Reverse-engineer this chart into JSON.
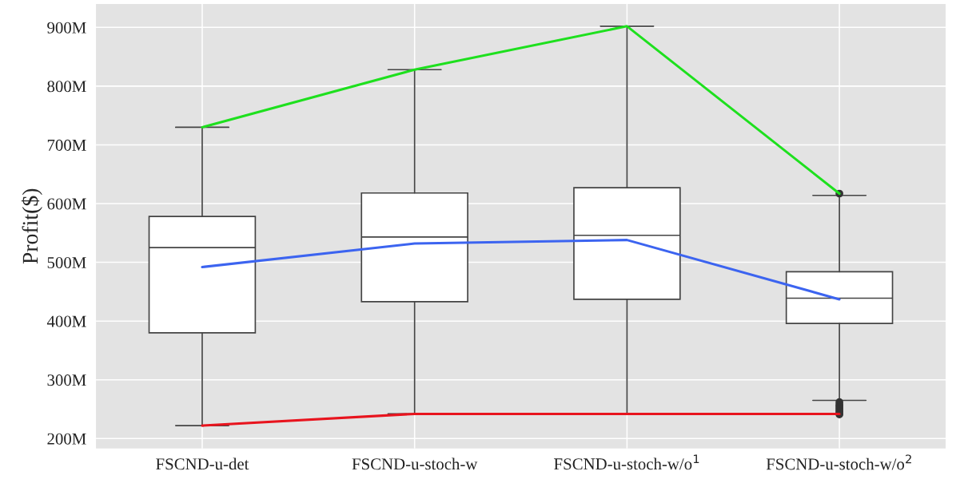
{
  "chart_data": {
    "type": "box",
    "ylabel": "Profit($)",
    "categories": [
      "FSCND-u-det",
      "FSCND-u-stoch-w",
      "FSCND-u-stoch-w/o$^{1}$",
      "FSCND-u-stoch-w/o$^{2}$"
    ],
    "boxes": [
      {
        "low": 222,
        "q1": 380,
        "median": 525,
        "q3": 578,
        "high": 730
      },
      {
        "low": 242,
        "q1": 433,
        "median": 543,
        "q3": 618,
        "high": 828
      },
      {
        "low": 242,
        "q1": 437,
        "median": 546,
        "q3": 627,
        "high": 902
      },
      {
        "low": 265,
        "q1": 396,
        "median": 439,
        "q3": 484,
        "high": 614,
        "outliers": [
          617,
          262,
          258,
          255,
          252,
          249,
          246,
          243,
          241
        ]
      }
    ],
    "series": [
      {
        "type": "line",
        "color": "#1ee01e",
        "values": [
          730,
          828,
          902,
          617
        ]
      },
      {
        "type": "line",
        "color": "#3c64f0",
        "values": [
          492,
          532,
          538,
          437
        ]
      },
      {
        "type": "line",
        "color": "#e8141e",
        "values": [
          222,
          242,
          242,
          242
        ]
      }
    ],
    "ylim": [
      183,
      940
    ],
    "yticks": [
      {
        "value": 200,
        "label": "200M"
      },
      {
        "value": 300,
        "label": "300M"
      },
      {
        "value": 400,
        "label": "400M"
      },
      {
        "value": 500,
        "label": "500M"
      },
      {
        "value": 600,
        "label": "600M"
      },
      {
        "value": 700,
        "label": "700M"
      },
      {
        "value": 800,
        "label": "800M"
      },
      {
        "value": 900,
        "label": "900M"
      }
    ],
    "grid": true
  }
}
